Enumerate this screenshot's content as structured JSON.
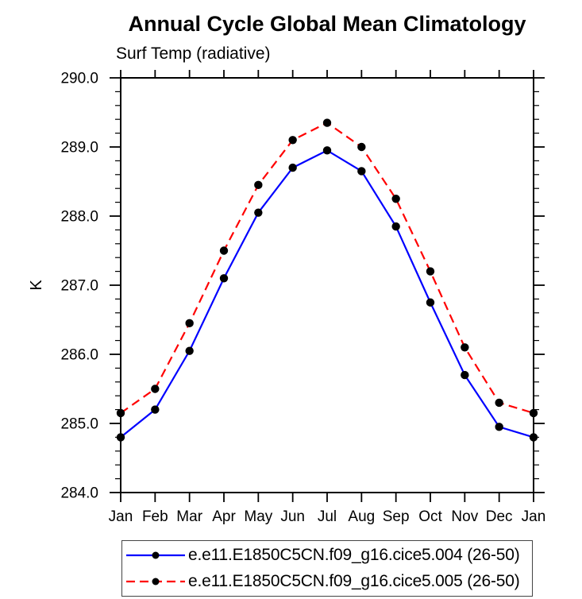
{
  "chart_data": {
    "type": "line",
    "title": "Annual Cycle Global Mean Climatology",
    "subtitle": "Surf Temp (radiative)",
    "ylabel": "K",
    "xlabel": "",
    "categories": [
      "Jan",
      "Feb",
      "Mar",
      "Apr",
      "May",
      "Jun",
      "Jul",
      "Aug",
      "Sep",
      "Oct",
      "Nov",
      "Dec",
      "Jan"
    ],
    "ylim": [
      284.0,
      290.0
    ],
    "ytick_major_interval": 1.0,
    "ytick_minor_interval": 0.2,
    "ytick_label_format_decimals": 1,
    "grid": false,
    "legend_position": "bottom-boxed",
    "axis_color": "#000000",
    "marker": "filled-circle",
    "marker_color": "#000000",
    "series": [
      {
        "name": "e.e11.E1850C5CN.f09_g16.cice5.004 (26-50)",
        "line_color": "#0000ff",
        "line_style": "solid",
        "values": [
          284.8,
          285.2,
          286.05,
          287.1,
          288.05,
          288.7,
          288.95,
          288.65,
          287.85,
          286.75,
          285.7,
          284.95,
          284.8
        ]
      },
      {
        "name": "e.e11.E1850C5CN.f09_g16.cice5.005 (26-50)",
        "line_color": "#ff0000",
        "line_style": "dashed",
        "values": [
          285.15,
          285.5,
          286.45,
          287.5,
          288.45,
          289.1,
          289.35,
          289.0,
          288.25,
          287.2,
          286.1,
          285.3,
          285.15
        ]
      }
    ]
  }
}
